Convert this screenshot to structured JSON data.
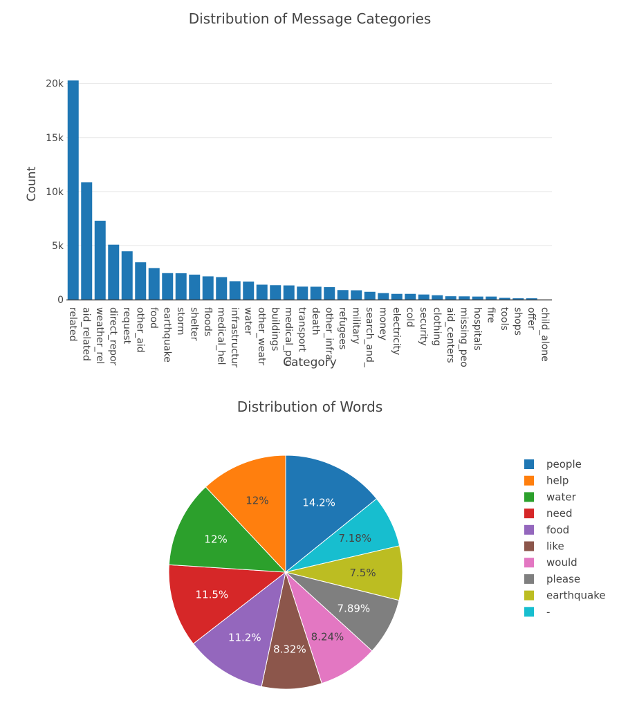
{
  "chart_data": [
    {
      "type": "bar",
      "title": "Distribution of Message Categories",
      "xlabel": "Category",
      "ylabel": "Count",
      "ylim": [
        0,
        20300
      ],
      "yticks": [
        0,
        5000,
        10000,
        15000,
        20000
      ],
      "ytick_labels": [
        "0",
        "5k",
        "10k",
        "15k",
        "20k"
      ],
      "grid": true,
      "color": "#1f77b4",
      "categories": [
        "related",
        "aid_related",
        "weather_rel",
        "direct_repor",
        "request",
        "other_aid",
        "food",
        "earthquake",
        "storm",
        "shelter",
        "floods",
        "medical_hel",
        "infrastructur",
        "water",
        "other_weatr",
        "buildings",
        "medical_pro",
        "transport",
        "death",
        "other_infra",
        "refugees",
        "military",
        "search_and_",
        "money",
        "electricity",
        "cold",
        "security",
        "clothing",
        "aid_centers",
        "missing_peo",
        "hospitals",
        "fire",
        "tools",
        "shops",
        "offer",
        "child_alone"
      ],
      "values": [
        20280,
        10860,
        7300,
        5080,
        4470,
        3450,
        2920,
        2450,
        2440,
        2310,
        2150,
        2080,
        1700,
        1670,
        1380,
        1330,
        1310,
        1200,
        1190,
        1150,
        880,
        860,
        720,
        600,
        530,
        530,
        470,
        400,
        310,
        300,
        280,
        280,
        160,
        120,
        120,
        0
      ]
    },
    {
      "type": "pie",
      "title": "Distribution of Words",
      "labels": [
        "people",
        "help",
        "water",
        "need",
        "food",
        "like",
        "would",
        "please",
        "earthquake",
        "-"
      ],
      "values": [
        14.2,
        12,
        12,
        11.5,
        11.2,
        8.32,
        8.24,
        7.89,
        7.5,
        7.18
      ],
      "value_labels": [
        "14.2%",
        "12%",
        "12%",
        "11.5%",
        "11.2%",
        "8.32%",
        "8.24%",
        "7.89%",
        "7.5%",
        "7.18%"
      ],
      "colors": [
        "#1f77b4",
        "#ff7f0e",
        "#2ca02c",
        "#d62728",
        "#9467bd",
        "#8c564b",
        "#e377c2",
        "#7f7f7f",
        "#bcbd22",
        "#17becf"
      ],
      "legend_position": "right"
    }
  ]
}
